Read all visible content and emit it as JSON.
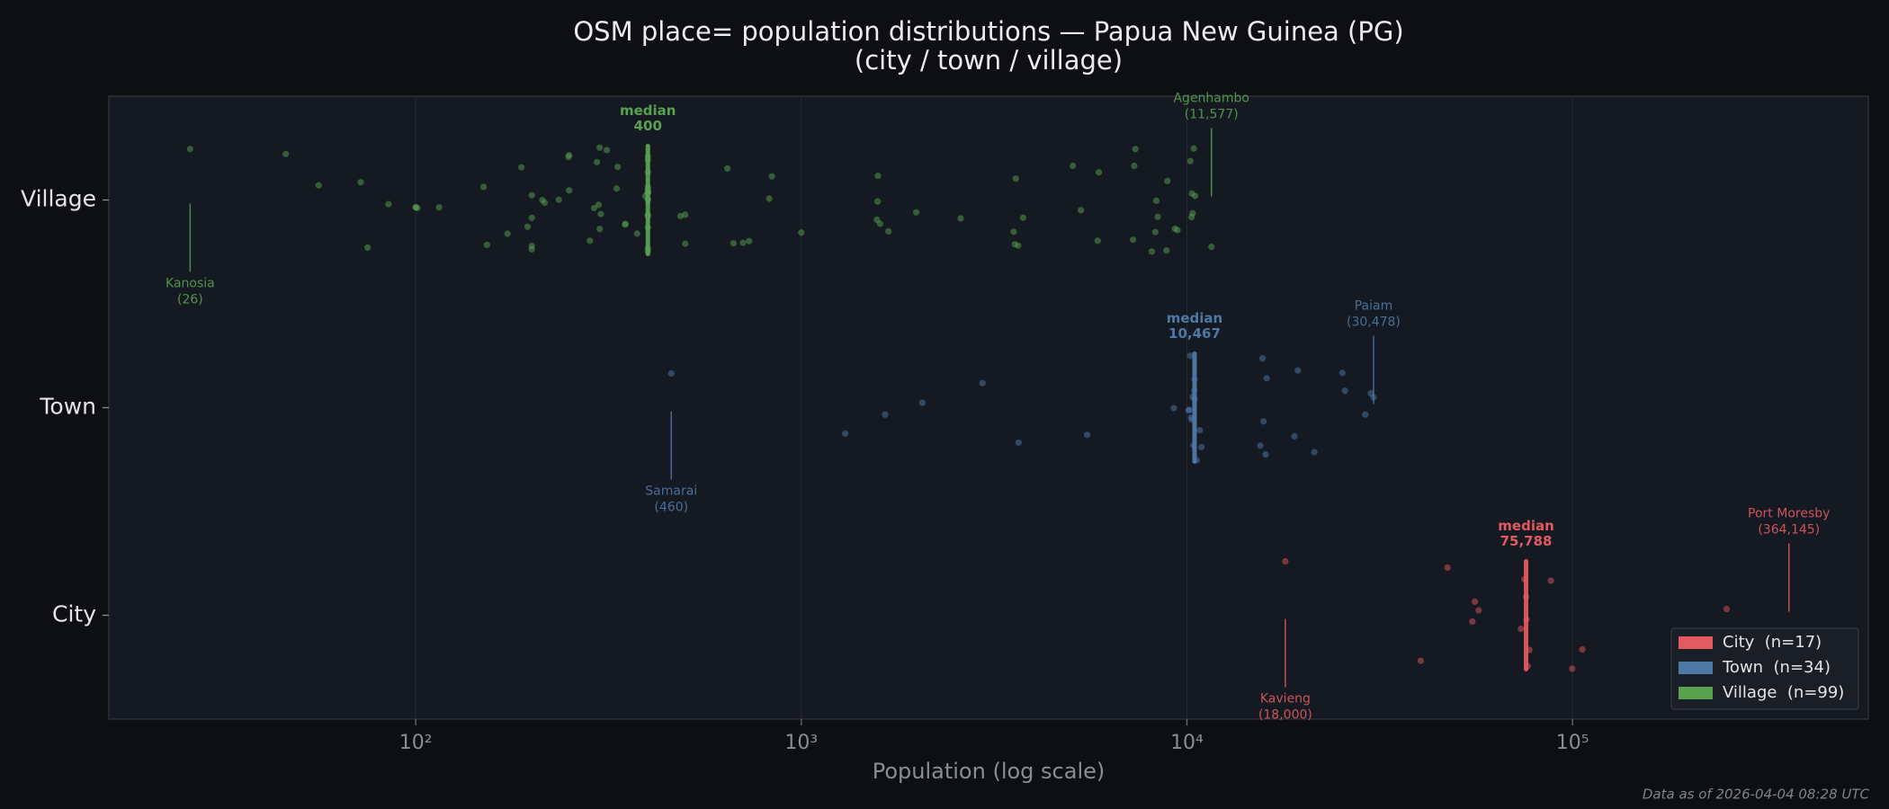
{
  "chart_data": {
    "type": "strip",
    "title": "OSM place= population distributions — Papua New Guinea (PG)",
    "subtitle": "(city / town / village)",
    "x_label": "Population (log scale)",
    "footnote": "Data as of 2026-04-04 08:28 UTC",
    "xscale": "log",
    "xlim": [
      16,
      585000
    ],
    "xticks": [
      {
        "value": 100,
        "label": "10²"
      },
      {
        "value": 1000,
        "label": "10³"
      },
      {
        "value": 10000,
        "label": "10⁴"
      },
      {
        "value": 100000,
        "label": "10⁵"
      }
    ],
    "grid": true,
    "legend": "lower right",
    "categories": [
      "City",
      "Town",
      "Village"
    ],
    "series": [
      {
        "name": "City  (n=17)",
        "color": "#e05a5f",
        "values": [
          18000,
          40400,
          47400,
          55000,
          55800,
          57100,
          73500,
          75000,
          75788,
          76000,
          76500,
          77300,
          87900,
          99800,
          106000,
          251000,
          364145
        ],
        "median": {
          "label": "median",
          "value": 75788,
          "value_label": "75,788"
        },
        "annotations": [
          {
            "label": "Kavieng",
            "value": 18000,
            "value_label": "(18,000)",
            "position": "below"
          },
          {
            "label": "Port Moresby",
            "value": 364145,
            "value_label": "(364,145)",
            "position": "above"
          }
        ]
      },
      {
        "name": "Town  (n=34)",
        "color": "#4e79a7",
        "values": [
          460,
          1300,
          1650,
          2060,
          2950,
          3660,
          5510,
          9250,
          10100,
          10150,
          10200,
          10250,
          10300,
          10350,
          10400,
          10450,
          10467,
          10467,
          10600,
          10800,
          10900,
          15500,
          15700,
          15800,
          16000,
          16100,
          19000,
          19400,
          21400,
          25300,
          25700,
          29000,
          30000,
          30478
        ],
        "median": {
          "label": "median",
          "value": 10467,
          "value_label": "10,467"
        },
        "annotations": [
          {
            "label": "Samarai",
            "value": 460,
            "value_label": "(460)",
            "position": "below"
          },
          {
            "label": "Paiam",
            "value": 30478,
            "value_label": "(30,478)",
            "position": "above"
          }
        ]
      },
      {
        "name": "Village  (n=99)",
        "color": "#59a14f",
        "values": [
          26,
          46,
          56,
          72,
          75,
          85,
          100,
          100,
          101,
          115,
          150,
          153,
          173,
          188,
          195,
          200,
          200,
          200,
          200,
          213,
          216,
          235,
          249,
          250,
          250,
          283,
          290,
          295,
          298,
          300,
          300,
          302,
          313,
          332,
          334,
          349,
          350,
          375,
          394,
          400,
          400,
          400,
          400,
          400,
          400,
          400,
          400,
          400,
          400,
          400,
          400,
          400,
          400,
          400,
          400,
          486,
          500,
          500,
          643,
          667,
          706,
          732,
          826,
          839,
          1000,
          1570,
          1577,
          1580,
          1600,
          1683,
          1986,
          2590,
          3554,
          3580,
          3600,
          3650,
          3760,
          5060,
          5310,
          5870,
          5910,
          7250,
          7300,
          7350,
          8110,
          8280,
          8330,
          8400,
          8850,
          8900,
          9310,
          9450,
          10210,
          10280,
          10300,
          10350,
          10420,
          10500,
          11577
        ],
        "median": {
          "label": "median",
          "value": 400,
          "value_label": "400"
        },
        "annotations": [
          {
            "label": "Kanosia",
            "value": 26,
            "value_label": "(26)",
            "position": "below"
          },
          {
            "label": "Agenhambo",
            "value": 11577,
            "value_label": "(11,577)",
            "position": "above"
          }
        ]
      }
    ]
  }
}
